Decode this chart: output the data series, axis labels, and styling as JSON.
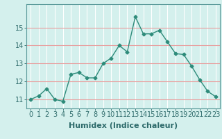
{
  "x": [
    0,
    1,
    2,
    3,
    4,
    5,
    6,
    7,
    8,
    9,
    10,
    11,
    12,
    13,
    14,
    15,
    16,
    17,
    18,
    19,
    20,
    21,
    22,
    23
  ],
  "y": [
    11.0,
    11.2,
    11.6,
    11.0,
    10.9,
    12.4,
    12.5,
    12.2,
    12.2,
    13.0,
    13.3,
    14.0,
    13.65,
    15.6,
    14.65,
    14.65,
    14.85,
    14.2,
    13.55,
    13.5,
    12.85,
    12.1,
    11.45,
    11.15
  ],
  "line_color": "#2e8b7a",
  "marker": "D",
  "marker_size": 2.5,
  "bg_color": "#d4f0ed",
  "xlabel": "Humidex (Indice chaleur)",
  "xlabel_fontsize": 8,
  "tick_fontsize": 7,
  "ylim": [
    10.5,
    16.3
  ],
  "xlim": [
    -0.5,
    23.5
  ],
  "yticks": [
    11,
    12,
    13,
    14,
    15
  ],
  "xticks": [
    0,
    1,
    2,
    3,
    4,
    5,
    6,
    7,
    8,
    9,
    10,
    11,
    12,
    13,
    14,
    15,
    16,
    17,
    18,
    19,
    20,
    21,
    22,
    23
  ],
  "line_width": 1.0,
  "xgrid_color": "#ffffff",
  "ygrid_color": "#e8a0a0"
}
